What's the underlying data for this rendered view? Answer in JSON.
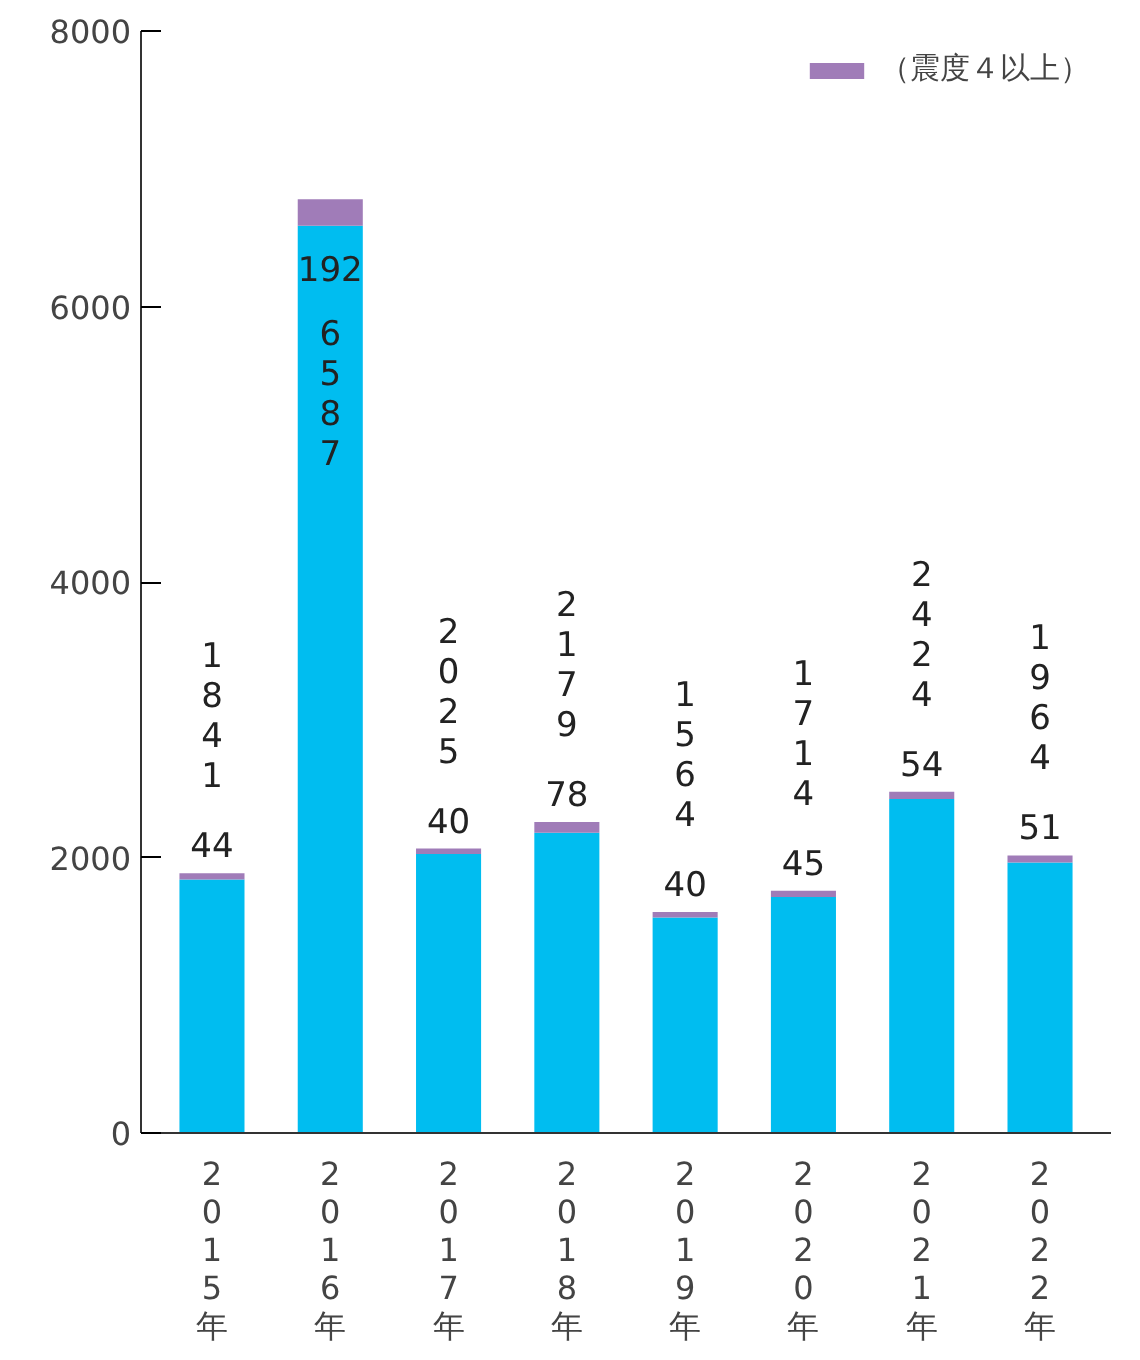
{
  "chart_data": {
    "type": "bar",
    "stacked": true,
    "categories": [
      "2015年",
      "2016年",
      "2017年",
      "2018年",
      "2019年",
      "2020年",
      "2021年",
      "2022年"
    ],
    "series": [
      {
        "color": "#00bdf0",
        "values": [
          1841,
          6587,
          2025,
          2179,
          1564,
          1714,
          2424,
          1964
        ]
      },
      {
        "name": "（震度４以上）",
        "color": "#a07cb8",
        "values": [
          44,
          192,
          40,
          78,
          40,
          45,
          54,
          51
        ]
      }
    ],
    "ylim": [
      0,
      8000
    ],
    "yticks": [
      0,
      2000,
      4000,
      6000,
      8000
    ],
    "grid": false,
    "legend": "top right",
    "data_labels": true
  }
}
